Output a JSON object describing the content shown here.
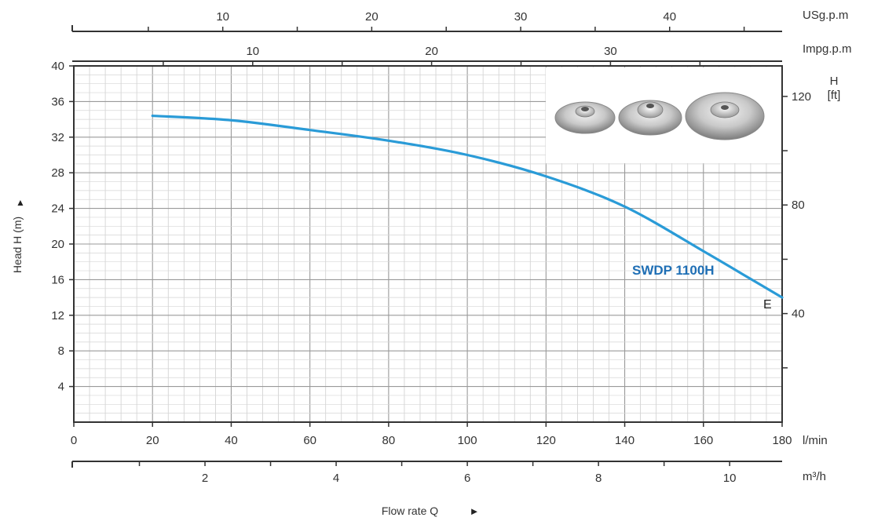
{
  "chart_data": {
    "type": "line",
    "title": "",
    "series": [
      {
        "name": "SWDP 1100H",
        "color": "#2a9bd7",
        "x": [
          20,
          40,
          60,
          80,
          100,
          120,
          140,
          160,
          170,
          180
        ],
        "y": [
          34.4,
          33.9,
          32.8,
          31.6,
          30.0,
          27.6,
          24.2,
          19.2,
          16.6,
          14.0
        ],
        "end_marker": "E"
      }
    ],
    "x_axis": {
      "unit": "l/min",
      "range": [
        0,
        180
      ],
      "ticks": [
        0,
        20,
        40,
        60,
        80,
        100,
        120,
        140,
        160,
        180
      ]
    },
    "x_axis_m3h": {
      "unit": "m³/h",
      "ticks": [
        "2",
        "4",
        "6",
        "8",
        "10"
      ],
      "label": "Flow rate Q"
    },
    "top_axis_usgpm": {
      "unit": "USg.p.m",
      "ticks": [
        "10",
        "20",
        "30",
        "40"
      ]
    },
    "top_axis_impgpm": {
      "unit": "Impg.p.m",
      "ticks": [
        "10",
        "20",
        "30"
      ]
    },
    "y_axis": {
      "label": "Head H (m)",
      "range": [
        0,
        40
      ],
      "ticks": [
        4,
        8,
        12,
        16,
        20,
        24,
        28,
        32,
        36,
        40
      ]
    },
    "y_axis_right": {
      "unit_top": "H",
      "unit_bottom": "[ft]",
      "ticks": [
        "40",
        "80",
        "120"
      ]
    },
    "grid": true,
    "inset_image": "impeller-photos"
  },
  "labels": {
    "end_marker": "E",
    "series_label": "SWDP 1100H",
    "up_arrow": "▲",
    "right_arrow": "►"
  }
}
